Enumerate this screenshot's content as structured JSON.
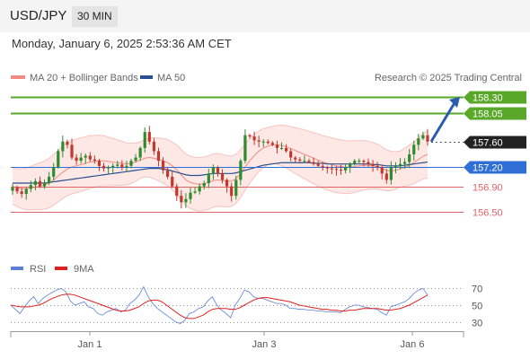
{
  "header": {
    "symbol": "USD/JPY",
    "timeframe": "30 MIN"
  },
  "timestamp": "Monday, January 6, 2025 2:53:36 AM CET",
  "legend": {
    "bb": {
      "label": "MA 20 + Bollinger Bands",
      "color": "#f28b82"
    },
    "ma50": {
      "label": "MA 50",
      "color": "#2a4f8f"
    },
    "credit": "Research © 2025 Trading Central"
  },
  "rsi_legend": {
    "rsi": {
      "label": "RSI",
      "color": "#5b7fd6"
    },
    "ma9": {
      "label": "9MA",
      "color": "#e02020"
    }
  },
  "colors": {
    "up": "#2e8b2e",
    "down": "#c0392b",
    "resistance": "#5aa82a",
    "pivot": "#2f6fd6",
    "support": "#e06666",
    "price": "#222222"
  },
  "chart_data": {
    "type": "candlestick",
    "x_ticks": [
      "Jan 1",
      "Jan 3",
      "Jan 6"
    ],
    "y_range": [
      156.25,
      158.45
    ],
    "levels": [
      {
        "value": 158.3,
        "label": "158.30",
        "kind": "resistance"
      },
      {
        "value": 158.05,
        "label": "158.05",
        "kind": "resistance"
      },
      {
        "value": 157.6,
        "label": "157.60",
        "kind": "current"
      },
      {
        "value": 157.2,
        "label": "157.20",
        "kind": "pivot"
      },
      {
        "value": 156.9,
        "label": "156.90",
        "kind": "support"
      },
      {
        "value": 156.5,
        "label": "156.50",
        "kind": "support"
      }
    ],
    "close": [
      156.88,
      156.82,
      156.78,
      156.86,
      156.92,
      156.98,
      156.9,
      156.95,
      157.05,
      157.2,
      157.45,
      157.6,
      157.55,
      157.35,
      157.3,
      157.35,
      157.38,
      157.32,
      157.3,
      157.22,
      157.18,
      157.2,
      157.22,
      157.24,
      157.2,
      157.22,
      157.3,
      157.35,
      157.5,
      157.75,
      157.6,
      157.45,
      157.3,
      157.15,
      157.05,
      156.9,
      156.75,
      156.65,
      156.7,
      156.8,
      156.82,
      156.9,
      156.95,
      157.1,
      157.2,
      157.1,
      157.0,
      156.9,
      156.75,
      157.0,
      157.3,
      157.7,
      157.68,
      157.62,
      157.6,
      157.6,
      157.58,
      157.55,
      157.5,
      157.5,
      157.45,
      157.35,
      157.32,
      157.3,
      157.3,
      157.28,
      157.25,
      157.22,
      157.2,
      157.18,
      157.17,
      157.16,
      157.15,
      157.2,
      157.25,
      157.3,
      157.3,
      157.28,
      157.25,
      157.22,
      157.2,
      157.1,
      157.0,
      157.2,
      157.22,
      157.25,
      157.28,
      157.4,
      157.55,
      157.65,
      157.7,
      157.6
    ],
    "ma20": [
      156.9,
      156.88,
      156.86,
      156.86,
      156.87,
      156.89,
      156.9,
      156.92,
      156.95,
      157.0,
      157.06,
      157.12,
      157.17,
      157.2,
      157.22,
      157.24,
      157.26,
      157.28,
      157.29,
      157.3,
      157.3,
      157.29,
      157.28,
      157.27,
      157.26,
      157.25,
      157.26,
      157.28,
      157.31,
      157.34,
      157.35,
      157.34,
      157.32,
      157.3,
      157.27,
      157.22,
      157.16,
      157.08,
      157.0,
      156.96,
      156.94,
      156.93,
      156.94,
      156.96,
      156.99,
      157.0,
      156.99,
      156.98,
      156.98,
      157.02,
      157.1,
      157.2,
      157.3,
      157.38,
      157.45,
      157.5,
      157.53,
      157.55,
      157.55,
      157.54,
      157.52,
      157.49,
      157.46,
      157.43,
      157.4,
      157.37,
      157.34,
      157.31,
      157.28,
      157.26,
      157.24,
      157.22,
      157.21,
      157.2,
      157.2,
      157.21,
      157.22,
      157.23,
      157.23,
      157.22,
      157.21,
      157.18,
      157.15,
      157.14,
      157.15,
      157.17,
      157.2,
      157.23,
      157.27,
      157.32,
      157.37,
      157.4
    ],
    "ma50": [
      156.95,
      156.95,
      156.95,
      156.95,
      156.95,
      156.95,
      156.95,
      156.95,
      156.96,
      156.97,
      156.98,
      156.99,
      157.0,
      157.01,
      157.02,
      157.03,
      157.04,
      157.05,
      157.06,
      157.07,
      157.08,
      157.09,
      157.1,
      157.11,
      157.12,
      157.13,
      157.14,
      157.15,
      157.16,
      157.17,
      157.18,
      157.18,
      157.18,
      157.17,
      157.16,
      157.14,
      157.12,
      157.1,
      157.08,
      157.07,
      157.07,
      157.07,
      157.08,
      157.09,
      157.1,
      157.1,
      157.1,
      157.1,
      157.1,
      157.11,
      157.13,
      157.15,
      157.17,
      157.19,
      157.21,
      157.23,
      157.24,
      157.25,
      157.26,
      157.27,
      157.27,
      157.27,
      157.27,
      157.27,
      157.27,
      157.27,
      157.26,
      157.26,
      157.26,
      157.25,
      157.25,
      157.25,
      157.25,
      157.25,
      157.25,
      157.25,
      157.25,
      157.25,
      157.25,
      157.24,
      157.24,
      157.23,
      157.22,
      157.22,
      157.22,
      157.22,
      157.23,
      157.24,
      157.25,
      157.26,
      157.27,
      157.28
    ],
    "rsi_ticks": [
      70,
      50,
      30
    ],
    "rsi_range": [
      20,
      80
    ],
    "rsi": [
      50,
      45,
      40,
      48,
      55,
      60,
      52,
      58,
      62,
      65,
      68,
      70,
      66,
      55,
      50,
      52,
      54,
      48,
      46,
      40,
      38,
      42,
      44,
      46,
      42,
      44,
      52,
      56,
      62,
      72,
      60,
      52,
      46,
      42,
      38,
      34,
      30,
      28,
      32,
      40,
      42,
      46,
      48,
      55,
      60,
      50,
      44,
      40,
      35,
      50,
      58,
      68,
      66,
      60,
      58,
      58,
      56,
      54,
      52,
      52,
      50,
      46,
      46,
      45,
      45,
      44,
      44,
      43,
      43,
      42,
      42,
      42,
      41,
      45,
      48,
      50,
      50,
      48,
      47,
      46,
      45,
      41,
      38,
      48,
      50,
      52,
      54,
      58,
      64,
      68,
      70,
      62
    ],
    "rsi_ma9": [
      50,
      49,
      48,
      48,
      48,
      49,
      50,
      52,
      55,
      58,
      60,
      62,
      63,
      63,
      62,
      60,
      58,
      56,
      54,
      52,
      50,
      48,
      46,
      44,
      43,
      43,
      44,
      46,
      48,
      52,
      55,
      56,
      56,
      54,
      50,
      46,
      42,
      38,
      35,
      34,
      34,
      36,
      38,
      42,
      45,
      46,
      46,
      46,
      45,
      45,
      47,
      50,
      53,
      56,
      58,
      59,
      59,
      58,
      57,
      56,
      55,
      54,
      52,
      50,
      49,
      48,
      47,
      46,
      45,
      45,
      44,
      44,
      43,
      43,
      44,
      44,
      45,
      46,
      46,
      46,
      46,
      45,
      44,
      44,
      45,
      46,
      48,
      50,
      53,
      56,
      59,
      62
    ],
    "forecast": {
      "from": 157.6,
      "to": 158.3
    }
  }
}
